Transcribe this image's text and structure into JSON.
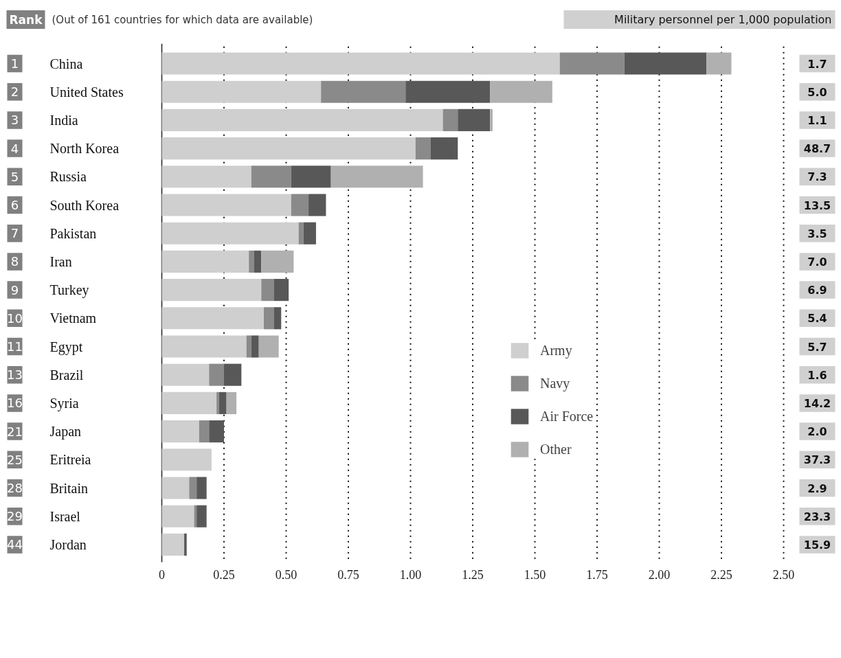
{
  "chart_data": {
    "type": "bar",
    "orientation": "horizontal",
    "stacked": true,
    "categories": [
      "China",
      "United States",
      "India",
      "North Korea",
      "Russia",
      "South Korea",
      "Pakistan",
      "Iran",
      "Turkey",
      "Vietnam",
      "Egypt",
      "Brazil",
      "Syria",
      "Japan",
      "Eritreia",
      "Britain",
      "Israel",
      "Jordan"
    ],
    "series": [
      {
        "name": "Army",
        "color": "#cfcfcf",
        "values": [
          1.6,
          0.64,
          1.13,
          1.02,
          0.36,
          0.52,
          0.55,
          0.35,
          0.4,
          0.41,
          0.34,
          0.19,
          0.22,
          0.15,
          0.2,
          0.11,
          0.13,
          0.09
        ]
      },
      {
        "name": "Navy",
        "color": "#8a8a8a",
        "values": [
          0.26,
          0.34,
          0.06,
          0.06,
          0.16,
          0.07,
          0.02,
          0.02,
          0.05,
          0.04,
          0.02,
          0.06,
          0.01,
          0.04,
          0,
          0.03,
          0.01,
          0
        ]
      },
      {
        "name": "Air Force",
        "color": "#585858",
        "values": [
          0.33,
          0.34,
          0.13,
          0.11,
          0.16,
          0.07,
          0.05,
          0.03,
          0.06,
          0.03,
          0.03,
          0.07,
          0.03,
          0.06,
          0,
          0.04,
          0.04,
          0.01
        ]
      },
      {
        "name": "Other",
        "color": "#b0b0b0",
        "values": [
          0.1,
          0.25,
          0.01,
          0,
          0.37,
          0,
          0,
          0.13,
          0,
          0,
          0.08,
          0,
          0.04,
          0,
          0,
          0,
          0,
          0
        ]
      }
    ],
    "xlim": [
      0,
      2.5
    ],
    "xticks": [
      0,
      0.25,
      {
        "value": 0.5,
        "label": "0.50"
      },
      0.75,
      {
        "value": 1,
        "label": "1.00"
      },
      1.25,
      {
        "value": 1.5,
        "label": "1.50"
      },
      1.75,
      {
        "value": 2,
        "label": "2.00"
      },
      2.25,
      {
        "value": 2.5,
        "label": "2.50"
      }
    ],
    "grid": "x",
    "legend": "center right",
    "annotations": [
      "Rank",
      "(Out of 161 countries for which data are available)",
      "Military personnel per 1,000 population",
      "1",
      "2",
      "3",
      "4",
      "5",
      "6",
      "7",
      "8",
      "9",
      "10",
      "11",
      "13",
      "16",
      "21",
      "25",
      "28",
      "29",
      "44",
      "1.7",
      "5.0",
      "1.1",
      "48.7",
      "7.3",
      "13.5",
      "3.5",
      "7.0",
      "6.9",
      "5.4",
      "5.7",
      "1.6",
      "14.2",
      "2.0",
      "37.3",
      "2.9",
      "23.3",
      "15.9"
    ]
  }
}
